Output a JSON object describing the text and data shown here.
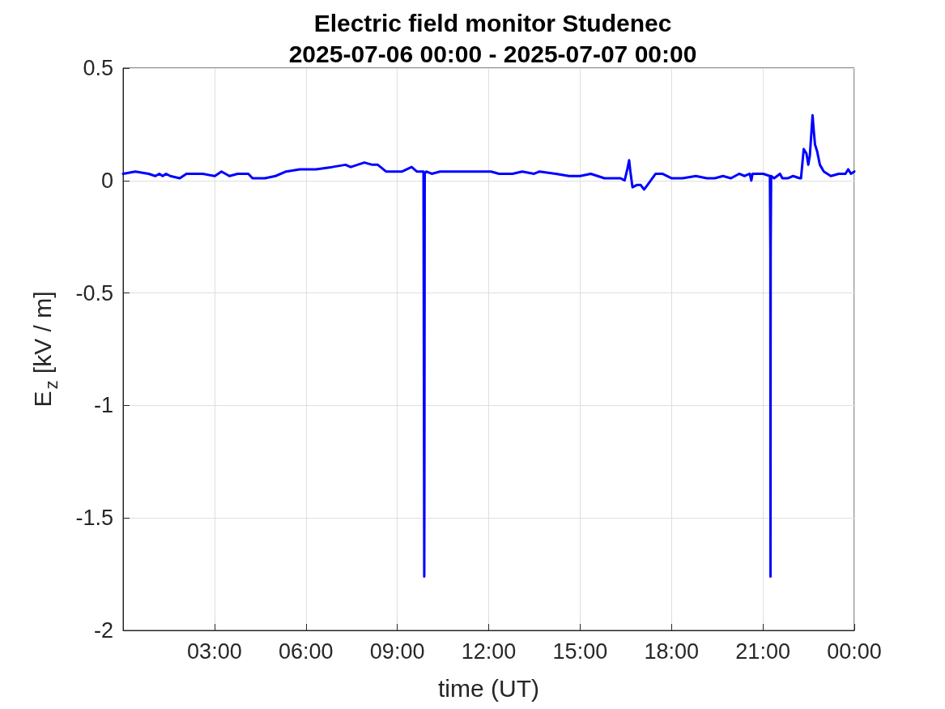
{
  "chart_data": {
    "type": "line",
    "title": "Electric field monitor Studenec",
    "subtitle": "2025-07-06 00:00 - 2025-07-07 00:00",
    "xlabel": "time (UT)",
    "ylabel": "E$_{z}$ [kV / m]",
    "x": [
      0,
      0.4,
      0.84,
      1.06,
      1.19,
      1.3,
      1.41,
      1.55,
      1.86,
      2.08,
      2.61,
      3.01,
      3.23,
      3.49,
      3.76,
      4.11,
      4.25,
      4.65,
      5.0,
      5.35,
      5.8,
      6.33,
      6.86,
      7.3,
      7.47,
      7.92,
      8.18,
      8.36,
      8.63,
      8.89,
      9.16,
      9.47,
      9.64,
      9.86,
      9.88,
      9.885,
      9.89,
      9.9,
      9.95,
      10.13,
      10.4,
      10.84,
      11.28,
      11.72,
      12.08,
      12.34,
      12.78,
      13.1,
      13.49,
      13.67,
      14.2,
      14.64,
      15.0,
      15.35,
      15.8,
      15.97,
      16.15,
      16.33,
      16.46,
      16.55,
      16.61,
      16.65,
      16.72,
      16.86,
      16.99,
      17.1,
      17.21,
      17.48,
      17.7,
      18.01,
      18.36,
      18.8,
      19.16,
      19.42,
      19.69,
      19.95,
      20.22,
      20.4,
      20.57,
      20.62,
      20.66,
      21.01,
      21.23,
      21.245,
      21.25,
      21.255,
      21.27,
      21.37,
      21.56,
      21.64,
      21.81,
      21.99,
      22.21,
      22.25,
      22.34,
      22.43,
      22.49,
      22.54,
      22.63,
      22.67,
      22.71,
      22.78,
      22.87,
      23.0,
      23.23,
      23.49,
      23.71,
      23.8,
      23.89,
      24
    ],
    "values": [
      0.03,
      0.04,
      0.03,
      0.02,
      0.03,
      0.02,
      0.03,
      0.02,
      0.01,
      0.03,
      0.03,
      0.02,
      0.04,
      0.02,
      0.03,
      0.03,
      0.01,
      0.01,
      0.02,
      0.04,
      0.05,
      0.05,
      0.06,
      0.07,
      0.06,
      0.08,
      0.07,
      0.07,
      0.04,
      0.04,
      0.04,
      0.06,
      0.04,
      0.04,
      -1.33,
      -1.76,
      -1.32,
      0.03,
      0.04,
      0.03,
      0.04,
      0.04,
      0.04,
      0.04,
      0.04,
      0.03,
      0.03,
      0.04,
      0.03,
      0.04,
      0.03,
      0.02,
      0.02,
      0.03,
      0.01,
      0.01,
      0.01,
      0.01,
      0.0,
      0.05,
      0.09,
      0.04,
      -0.03,
      -0.02,
      -0.02,
      -0.04,
      -0.02,
      0.03,
      0.03,
      0.01,
      0.01,
      0.02,
      0.01,
      0.01,
      0.02,
      0.01,
      0.03,
      0.02,
      0.03,
      0.0,
      0.03,
      0.03,
      0.02,
      -0.32,
      -1.76,
      -0.3,
      0.02,
      0.01,
      0.03,
      0.01,
      0.01,
      0.02,
      0.01,
      0.01,
      0.14,
      0.12,
      0.07,
      0.11,
      0.29,
      0.22,
      0.16,
      0.13,
      0.07,
      0.04,
      0.02,
      0.03,
      0.03,
      0.05,
      0.03,
      0.04
    ],
    "color": "#0000ff",
    "xlim": [
      0,
      24
    ],
    "xticks": [
      {
        "value": 3,
        "label": "03:00"
      },
      {
        "value": 6,
        "label": "06:00"
      },
      {
        "value": 9,
        "label": "09:00"
      },
      {
        "value": 12,
        "label": "12:00"
      },
      {
        "value": 15,
        "label": "15:00"
      },
      {
        "value": 18,
        "label": "18:00"
      },
      {
        "value": 21,
        "label": "21:00"
      },
      {
        "value": 24,
        "label": "00:00"
      }
    ],
    "ylim": [
      -2,
      0.5
    ],
    "yticks": [
      -2,
      -1.5,
      -1,
      -0.5,
      0,
      0.5
    ],
    "grid": true
  }
}
